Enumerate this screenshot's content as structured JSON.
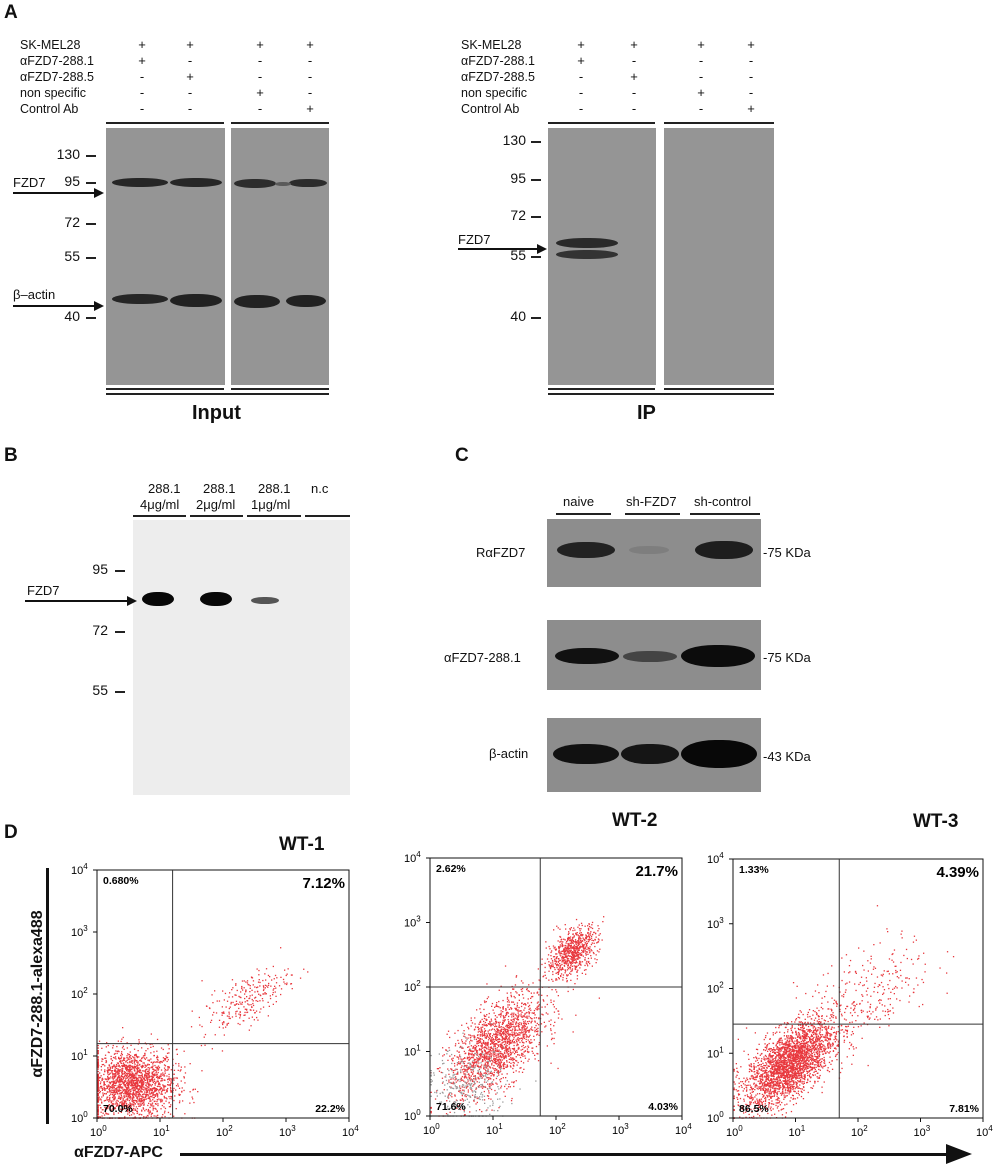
{
  "panels": {
    "A": {
      "letter": "A",
      "input_blot": {
        "row_labels": [
          "SK-MEL28",
          "αFZD7-288.1",
          "αFZD7-288.5",
          "non specific",
          "Control Ab"
        ],
        "signs": [
          [
            "+",
            "+",
            "+",
            "+"
          ],
          [
            "+",
            "-",
            "-",
            "-"
          ],
          [
            "-",
            "+",
            "-",
            "-"
          ],
          [
            "-",
            "-",
            "+",
            "-"
          ],
          [
            "-",
            "-",
            "-",
            "+"
          ]
        ],
        "mw_markers": [
          "130",
          "95",
          "72",
          "55",
          "40"
        ],
        "band_labels": [
          "FZD7",
          "β–actin"
        ],
        "caption": "Input"
      },
      "ip_blot": {
        "row_labels": [
          "SK-MEL28",
          "αFZD7-288.1",
          "αFZD7-288.5",
          "non specific",
          "Control Ab"
        ],
        "signs": [
          [
            "+",
            "+",
            "+",
            "+"
          ],
          [
            "+",
            "-",
            "-",
            "-"
          ],
          [
            "-",
            "+",
            "-",
            "-"
          ],
          [
            "-",
            "-",
            "+",
            "-"
          ],
          [
            "-",
            "-",
            "-",
            "+"
          ]
        ],
        "mw_markers": [
          "130",
          "95",
          "72",
          "55",
          "40"
        ],
        "band_labels": [
          "FZD7"
        ],
        "caption": "IP"
      }
    },
    "B": {
      "letter": "B",
      "lanes": [
        {
          "line1": "288.1",
          "line2": "4μg/ml"
        },
        {
          "line1": "288.1",
          "line2": "2μg/ml"
        },
        {
          "line1": "288.1",
          "line2": "1μg/ml"
        },
        {
          "line1": "n.c",
          "line2": ""
        }
      ],
      "mw_markers": [
        "95",
        "72",
        "55"
      ],
      "band_label": "FZD7"
    },
    "C": {
      "letter": "C",
      "lanes": [
        "naive",
        "sh-FZD7",
        "sh-control"
      ],
      "rows": [
        {
          "antibody": "RαFZD7",
          "size": "-75 KDa"
        },
        {
          "antibody": "αFZD7-288.1",
          "size": "-75 KDa"
        },
        {
          "antibody": "β-actin",
          "size": "-43 KDa"
        }
      ]
    },
    "D": {
      "letter": "D",
      "y_axis_label": "αFZD7-288.1-alexa488",
      "x_axis_label": "αFZD7-APC",
      "tick_labels": [
        "10^0",
        "10^1",
        "10^2",
        "10^3",
        "10^4"
      ],
      "plots": [
        {
          "title": "WT-1",
          "ul": "0.680%",
          "ur": "7.12%",
          "ll": "70.0%",
          "lr": "22.2%",
          "gate_x": 1.2,
          "gate_y": 1.2
        },
        {
          "title": "WT-2",
          "ul": "2.62%",
          "ur": "21.7%",
          "ll": "71.6%",
          "lr": "4.03%",
          "gate_x": 1.75,
          "gate_y": 2.0
        },
        {
          "title": "WT-3",
          "ul": "1.33%",
          "ur": "4.39%",
          "ll": "86.5%",
          "lr": "7.81%",
          "gate_x": 1.7,
          "gate_y": 1.45
        }
      ]
    }
  }
}
